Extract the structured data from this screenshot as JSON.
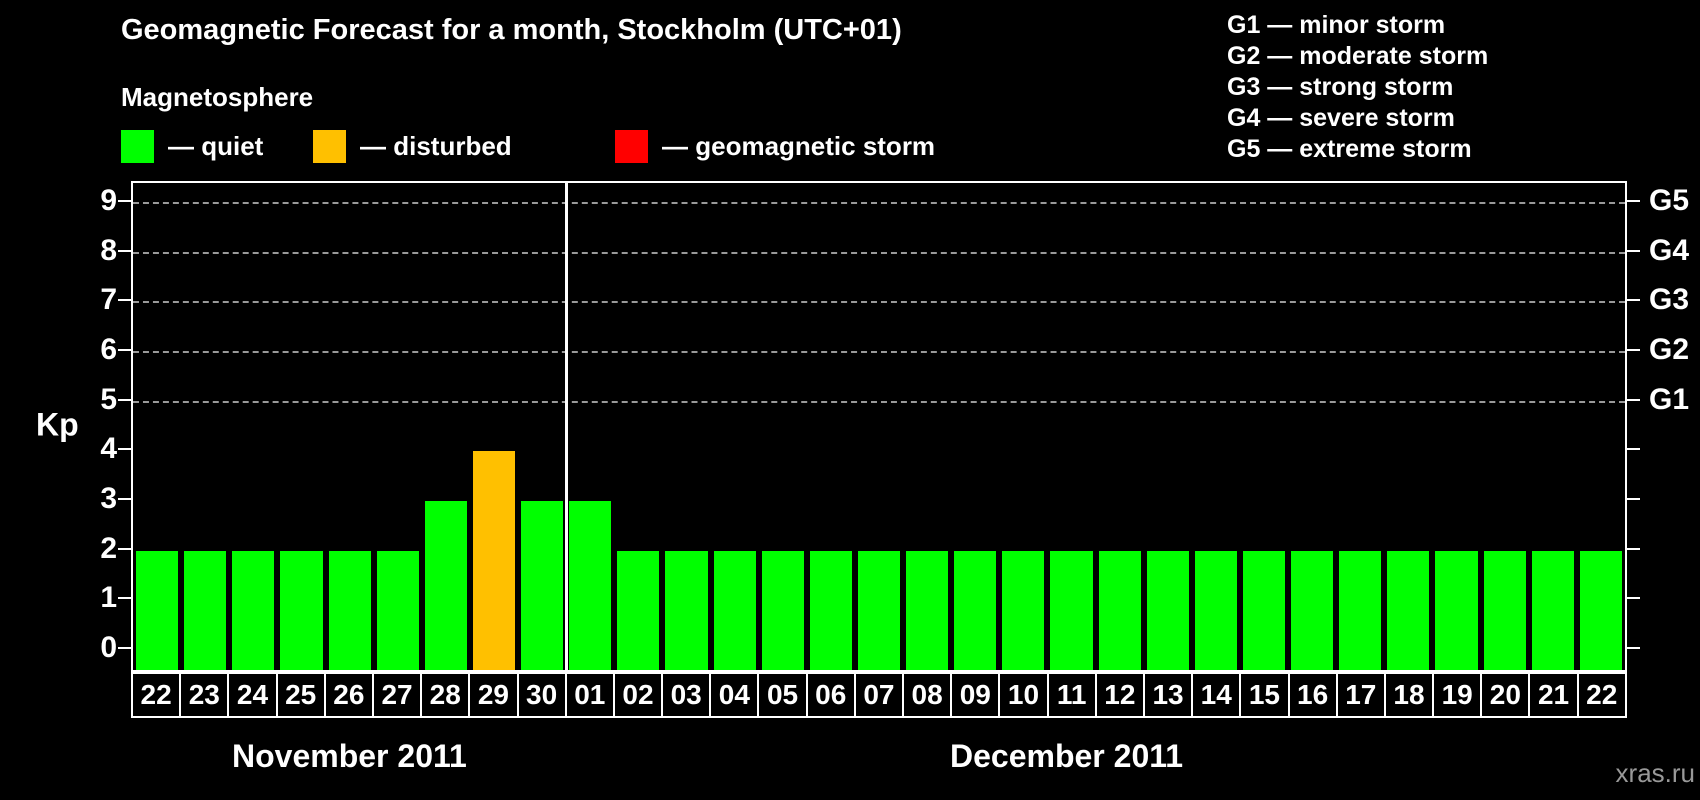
{
  "header": {
    "title": "Geomagnetic Forecast for a month, Stockholm (UTC+01)"
  },
  "magnetosphere_legend": {
    "title": "Magnetosphere",
    "items": [
      {
        "name": "quiet",
        "label": "— quiet",
        "color": "#00ff00"
      },
      {
        "name": "disturbed",
        "label": "— disturbed",
        "color": "#ffc000"
      },
      {
        "name": "geomagnetic-storm",
        "label": "— geomagnetic storm",
        "color": "#ff0000"
      }
    ]
  },
  "g_legend": {
    "lines": [
      "G1 — minor storm",
      "G2 — moderate storm",
      "G3 — strong storm",
      "G4 — severe storm",
      "G5 — extreme storm"
    ]
  },
  "chart_data": {
    "type": "bar",
    "title": "Geomagnetic Forecast for a month, Stockholm (UTC+01)",
    "ylabel": "Kp",
    "ylim": [
      -0.4,
      9.4
    ],
    "yticks": [
      0,
      1,
      2,
      3,
      4,
      5,
      6,
      7,
      8,
      9
    ],
    "grid_dashed_at": [
      5,
      6,
      7,
      8,
      9
    ],
    "right_axis": [
      {
        "kp": 9,
        "label": "G5"
      },
      {
        "kp": 8,
        "label": "G4"
      },
      {
        "kp": 7,
        "label": "G3"
      },
      {
        "kp": 6,
        "label": "G2"
      },
      {
        "kp": 5,
        "label": "G1"
      }
    ],
    "categories": [
      "22",
      "23",
      "24",
      "25",
      "26",
      "27",
      "28",
      "29",
      "30",
      "01",
      "02",
      "03",
      "04",
      "05",
      "06",
      "07",
      "08",
      "09",
      "10",
      "11",
      "12",
      "13",
      "14",
      "15",
      "16",
      "17",
      "18",
      "19",
      "20",
      "21",
      "22"
    ],
    "values": [
      2,
      2,
      2,
      2,
      2,
      2,
      3,
      4,
      3,
      3,
      2,
      2,
      2,
      2,
      2,
      2,
      2,
      2,
      2,
      2,
      2,
      2,
      2,
      2,
      2,
      2,
      2,
      2,
      2,
      2,
      2
    ],
    "status": [
      "quiet",
      "quiet",
      "quiet",
      "quiet",
      "quiet",
      "quiet",
      "quiet",
      "disturbed",
      "quiet",
      "quiet",
      "quiet",
      "quiet",
      "quiet",
      "quiet",
      "quiet",
      "quiet",
      "quiet",
      "quiet",
      "quiet",
      "quiet",
      "quiet",
      "quiet",
      "quiet",
      "quiet",
      "quiet",
      "quiet",
      "quiet",
      "quiet",
      "quiet",
      "quiet",
      "quiet"
    ],
    "months": [
      {
        "label": "November 2011",
        "days": 9
      },
      {
        "label": "December 2011",
        "days": 22
      }
    ],
    "legend_position": "top"
  },
  "status_colors": {
    "quiet": "#00ff00",
    "disturbed": "#ffc000",
    "geomagnetic-storm": "#ff0000"
  },
  "watermark": "xras.ru"
}
